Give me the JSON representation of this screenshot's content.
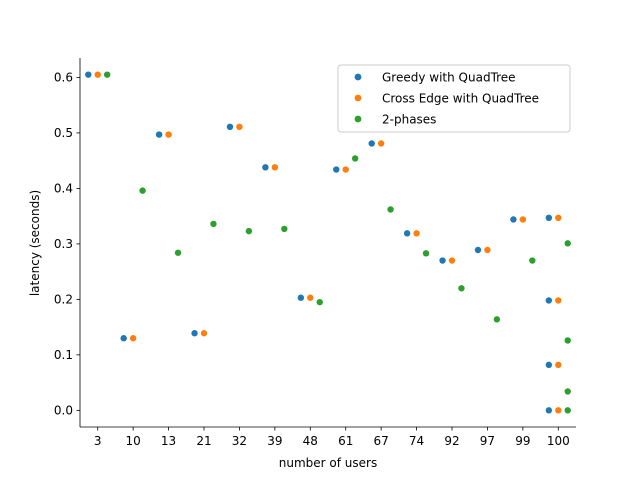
{
  "chart_data": {
    "type": "scatter",
    "xlabel": "number of users",
    "ylabel": "latency (seconds)",
    "categories": [
      "3",
      "10",
      "13",
      "21",
      "32",
      "39",
      "48",
      "61",
      "67",
      "74",
      "92",
      "97",
      "99",
      "100"
    ],
    "ylim": [
      -0.03,
      0.635
    ],
    "yticks": [
      0.0,
      0.1,
      0.2,
      0.3,
      0.4,
      0.5,
      0.6
    ],
    "ytick_labels": [
      "0.0",
      "0.1",
      "0.2",
      "0.3",
      "0.4",
      "0.5",
      "0.6"
    ],
    "grid": false,
    "legend_position": "upper-right",
    "series": [
      {
        "name": "Greedy with QuadTree",
        "color": "#1f77b4",
        "points": [
          {
            "cat": "3",
            "y": 0.605
          },
          {
            "cat": "10",
            "y": 0.13
          },
          {
            "cat": "13",
            "y": 0.497
          },
          {
            "cat": "21",
            "y": 0.139
          },
          {
            "cat": "32",
            "y": 0.511
          },
          {
            "cat": "39",
            "y": 0.438
          },
          {
            "cat": "48",
            "y": 0.203
          },
          {
            "cat": "61",
            "y": 0.434
          },
          {
            "cat": "67",
            "y": 0.481
          },
          {
            "cat": "74",
            "y": 0.319
          },
          {
            "cat": "92",
            "y": 0.27
          },
          {
            "cat": "97",
            "y": 0.289
          },
          {
            "cat": "99",
            "y": 0.344
          },
          {
            "cat": "100",
            "y": 0.347
          },
          {
            "cat": "100",
            "y": 0.198
          },
          {
            "cat": "100",
            "y": 0.082
          },
          {
            "cat": "100",
            "y": 0.0
          }
        ]
      },
      {
        "name": "Cross Edge with QuadTree",
        "color": "#ff7f0e",
        "points": [
          {
            "cat": "3",
            "y": 0.605
          },
          {
            "cat": "10",
            "y": 0.13
          },
          {
            "cat": "13",
            "y": 0.497
          },
          {
            "cat": "21",
            "y": 0.139
          },
          {
            "cat": "32",
            "y": 0.511
          },
          {
            "cat": "39",
            "y": 0.438
          },
          {
            "cat": "48",
            "y": 0.203
          },
          {
            "cat": "61",
            "y": 0.434
          },
          {
            "cat": "67",
            "y": 0.481
          },
          {
            "cat": "74",
            "y": 0.319
          },
          {
            "cat": "92",
            "y": 0.27
          },
          {
            "cat": "97",
            "y": 0.289
          },
          {
            "cat": "99",
            "y": 0.344
          },
          {
            "cat": "100",
            "y": 0.347
          },
          {
            "cat": "100",
            "y": 0.198
          },
          {
            "cat": "100",
            "y": 0.082
          },
          {
            "cat": "100",
            "y": 0.0
          }
        ]
      },
      {
        "name": "2-phases",
        "color": "#2ca02c",
        "points": [
          {
            "cat": "3",
            "y": 0.605
          },
          {
            "cat": "10",
            "y": 0.396
          },
          {
            "cat": "13",
            "y": 0.284
          },
          {
            "cat": "21",
            "y": 0.336
          },
          {
            "cat": "32",
            "y": 0.323
          },
          {
            "cat": "39",
            "y": 0.327
          },
          {
            "cat": "48",
            "y": 0.195
          },
          {
            "cat": "61",
            "y": 0.454
          },
          {
            "cat": "67",
            "y": 0.362
          },
          {
            "cat": "74",
            "y": 0.283
          },
          {
            "cat": "92",
            "y": 0.22
          },
          {
            "cat": "97",
            "y": 0.164
          },
          {
            "cat": "99",
            "y": 0.27
          },
          {
            "cat": "100",
            "y": 0.301
          },
          {
            "cat": "100",
            "y": 0.126
          },
          {
            "cat": "100",
            "y": 0.034
          },
          {
            "cat": "100",
            "y": 0.0
          }
        ]
      }
    ]
  }
}
